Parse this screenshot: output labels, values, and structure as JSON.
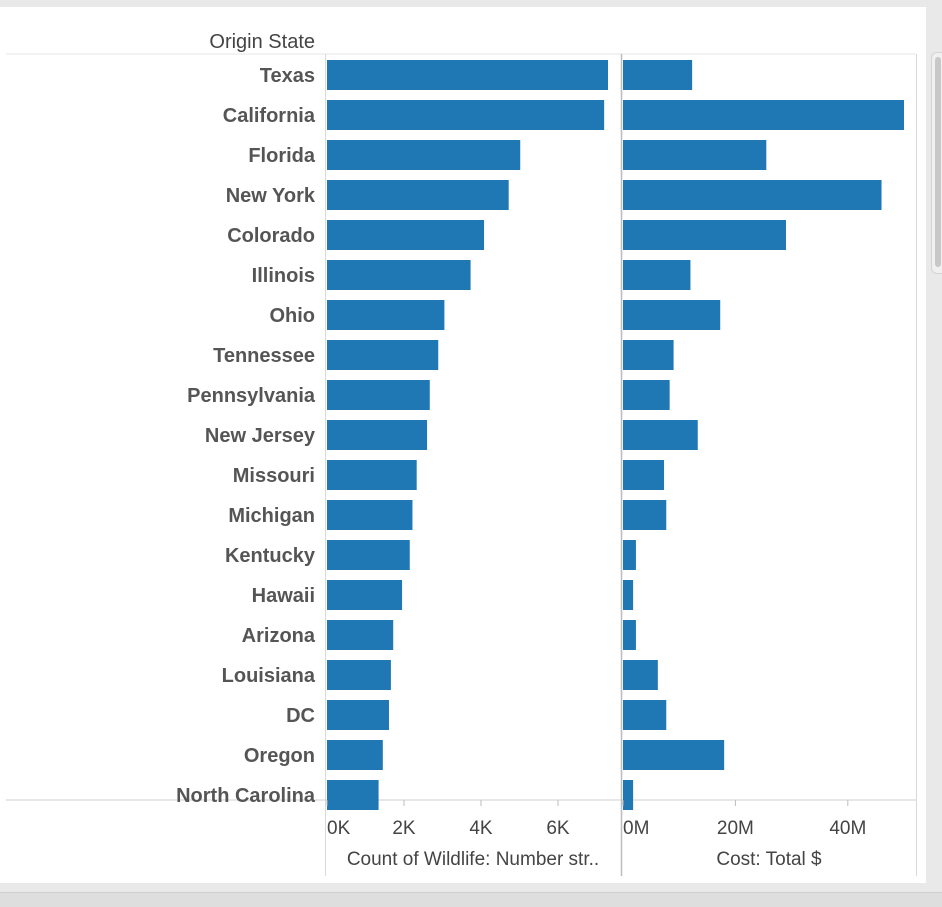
{
  "chart_data": {
    "type": "bar",
    "row_header": "Origin State",
    "categories": [
      "Texas",
      "California",
      "Florida",
      "New York",
      "Colorado",
      "Illinois",
      "Ohio",
      "Tennessee",
      "Pennsylvania",
      "New Jersey",
      "Missouri",
      "Michigan",
      "Kentucky",
      "Hawaii",
      "Arizona",
      "Louisiana",
      "DC",
      "Oregon",
      "North Carolina"
    ],
    "color": "#1f77b4",
    "panes": [
      {
        "axis_title": "Count of Wildlife: Number str..",
        "tick_labels": [
          "0K",
          "2K",
          "4K",
          "6K"
        ],
        "tick_values": [
          0,
          2000,
          4000,
          6000
        ],
        "xlim": [
          0,
          7300
        ],
        "series": [
          {
            "values": [
              7300,
              7200,
              5020,
              4720,
              4080,
              3730,
              3050,
              2890,
              2670,
              2600,
              2330,
              2220,
              2150,
              1950,
              1720,
              1660,
              1610,
              1450,
              1340
            ]
          }
        ]
      },
      {
        "axis_title": "Cost: Total $",
        "tick_labels": [
          "0M",
          "20M",
          "40M"
        ],
        "tick_values": [
          0,
          20000000,
          40000000
        ],
        "xlim": [
          0,
          50000000
        ],
        "series": [
          {
            "values": [
              12300000,
              50000000,
              25500000,
              46000000,
              29000000,
              12000000,
              17300000,
              9000000,
              8300000,
              13300000,
              7300000,
              7700000,
              2300000,
              1800000,
              2300000,
              6200000,
              7700000,
              18000000,
              1800000
            ]
          }
        ]
      }
    ]
  }
}
